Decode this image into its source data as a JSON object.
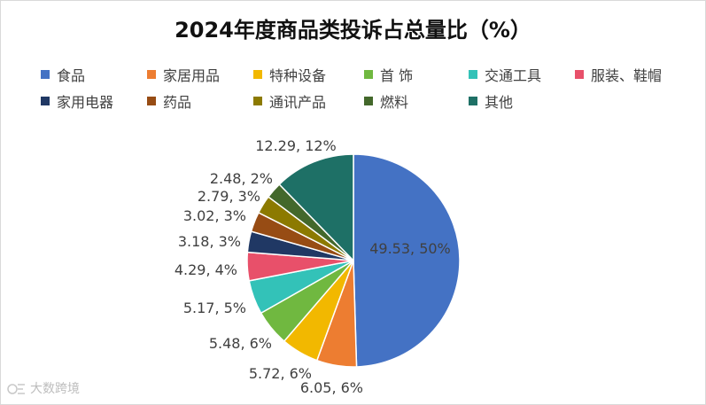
{
  "title": "2024年度商品类投诉占总量比（%）",
  "watermark": "大数跨境",
  "chart_data": {
    "type": "pie",
    "title": "2024年度商品类投诉占总量比（%）",
    "legend_position": "top",
    "slices": [
      {
        "name": "食品",
        "value": 49.53,
        "percent": 50,
        "label": "49.53, 50%",
        "color": "#4472C4"
      },
      {
        "name": "家居用品",
        "value": 6.05,
        "percent": 6,
        "label": "6.05, 6%",
        "color": "#ED7D31"
      },
      {
        "name": "特种设备",
        "value": 5.72,
        "percent": 6,
        "label": "5.72, 6%",
        "color": "#F2B800"
      },
      {
        "name": "首 饰",
        "value": 5.48,
        "percent": 6,
        "label": "5.48, 6%",
        "color": "#70B840"
      },
      {
        "name": "交通工具",
        "value": 5.17,
        "percent": 5,
        "label": "5.17, 5%",
        "color": "#33C2B8"
      },
      {
        "name": "服装、鞋帽",
        "value": 4.29,
        "percent": 4,
        "label": "4.29, 4%",
        "color": "#E8506A"
      },
      {
        "name": "家用电器",
        "value": 3.18,
        "percent": 3,
        "label": "3.18, 3%",
        "color": "#203864"
      },
      {
        "name": "药品",
        "value": 3.02,
        "percent": 3,
        "label": "3.02, 3%",
        "color": "#974C14"
      },
      {
        "name": "通讯产品",
        "value": 2.79,
        "percent": 3,
        "label": "2.79, 3%",
        "color": "#8C7A00"
      },
      {
        "name": "燃料",
        "value": 2.48,
        "percent": 2,
        "label": "2.48, 2%",
        "color": "#43682B"
      },
      {
        "name": "其他",
        "value": 12.29,
        "percent": 12,
        "label": "12.29, 12%",
        "color": "#1E7066"
      }
    ]
  }
}
